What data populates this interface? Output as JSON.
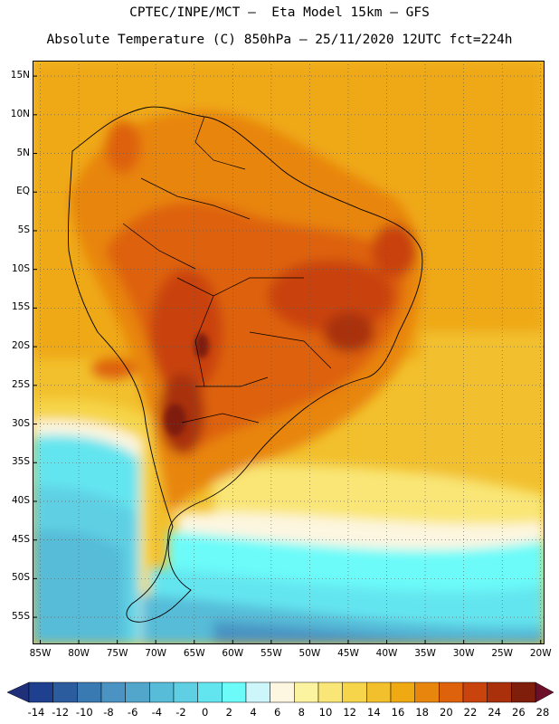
{
  "header": {
    "title_line1": "CPTEC/INPE/MCT –  Eta Model 15km – GFS",
    "title_line2": "Absolute Temperature (C) 850hPa – 25/11/2020 12UTC fct=224h"
  },
  "map": {
    "lon_range": [
      -86,
      -19.5
    ],
    "lat_range": [
      -58.5,
      17
    ],
    "lat_ticks": [
      "15N",
      "10N",
      "5N",
      "EQ",
      "5S",
      "10S",
      "15S",
      "20S",
      "25S",
      "30S",
      "35S",
      "40S",
      "45S",
      "50S",
      "55S"
    ],
    "lat_tick_values": [
      15,
      10,
      5,
      0,
      -5,
      -10,
      -15,
      -20,
      -25,
      -30,
      -35,
      -40,
      -45,
      -50,
      -55
    ],
    "lon_ticks": [
      "85W",
      "80W",
      "75W",
      "70W",
      "65W",
      "60W",
      "55W",
      "50W",
      "45W",
      "40W",
      "35W",
      "30W",
      "25W",
      "20W"
    ],
    "lon_tick_values": [
      -85,
      -80,
      -75,
      -70,
      -65,
      -60,
      -55,
      -50,
      -45,
      -40,
      -35,
      -30,
      -25,
      -20
    ],
    "gridlines": "dotted"
  },
  "colorbar": {
    "labels": [
      "-14",
      "-12",
      "-10",
      "-8",
      "-6",
      "-4",
      "-2",
      "0",
      "2",
      "4",
      "6",
      "8",
      "10",
      "12",
      "14",
      "16",
      "18",
      "20",
      "22",
      "24",
      "26",
      "28"
    ],
    "colors": [
      "#1f3f8f",
      "#2a5c9e",
      "#3a7ab2",
      "#4a93c3",
      "#52a6cc",
      "#56bcd8",
      "#5fd0e4",
      "#63e5ef",
      "#6cfbf9",
      "#cdf6fa",
      "#fdf6e0",
      "#fcf3a0",
      "#f9e676",
      "#f6d54a",
      "#f2c02d",
      "#efa912",
      "#e8850d",
      "#de620c",
      "#c9430c",
      "#a9300a",
      "#7f1e0a"
    ],
    "low_end_color": "#1f2f7a",
    "high_end_color": "#6e0f2a"
  }
}
